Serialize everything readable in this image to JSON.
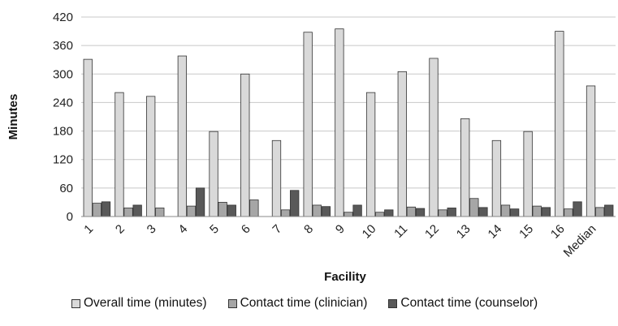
{
  "chart_data": {
    "type": "bar",
    "xlabel": "Facility",
    "ylabel": "Minutes",
    "ylim": [
      0,
      420
    ],
    "yticks": [
      0,
      60,
      120,
      180,
      240,
      300,
      360,
      420
    ],
    "grid": true,
    "legend_position": "bottom",
    "categories": [
      "1",
      "2",
      "3",
      "4",
      "5",
      "6",
      "7",
      "8",
      "9",
      "10",
      "11",
      "12",
      "13",
      "14",
      "15",
      "16",
      "Median"
    ],
    "series": [
      {
        "name": "Overall time (minutes)",
        "color": "#d9d9d9",
        "values": [
          331,
          261,
          253,
          338,
          179,
          300,
          160,
          388,
          395,
          261,
          305,
          333,
          206,
          160,
          179,
          390,
          275
        ]
      },
      {
        "name": "Contact time (clinician)",
        "color": "#a6a6a6",
        "values": [
          28,
          18,
          18,
          22,
          30,
          35,
          14,
          24,
          9,
          9,
          20,
          14,
          38,
          24,
          22,
          16,
          19
        ]
      },
      {
        "name": "Contact time (counselor)",
        "color": "#595959",
        "values": [
          31,
          24,
          0,
          60,
          24,
          0,
          55,
          21,
          24,
          14,
          17,
          18,
          19,
          16,
          19,
          31,
          24
        ]
      }
    ]
  }
}
